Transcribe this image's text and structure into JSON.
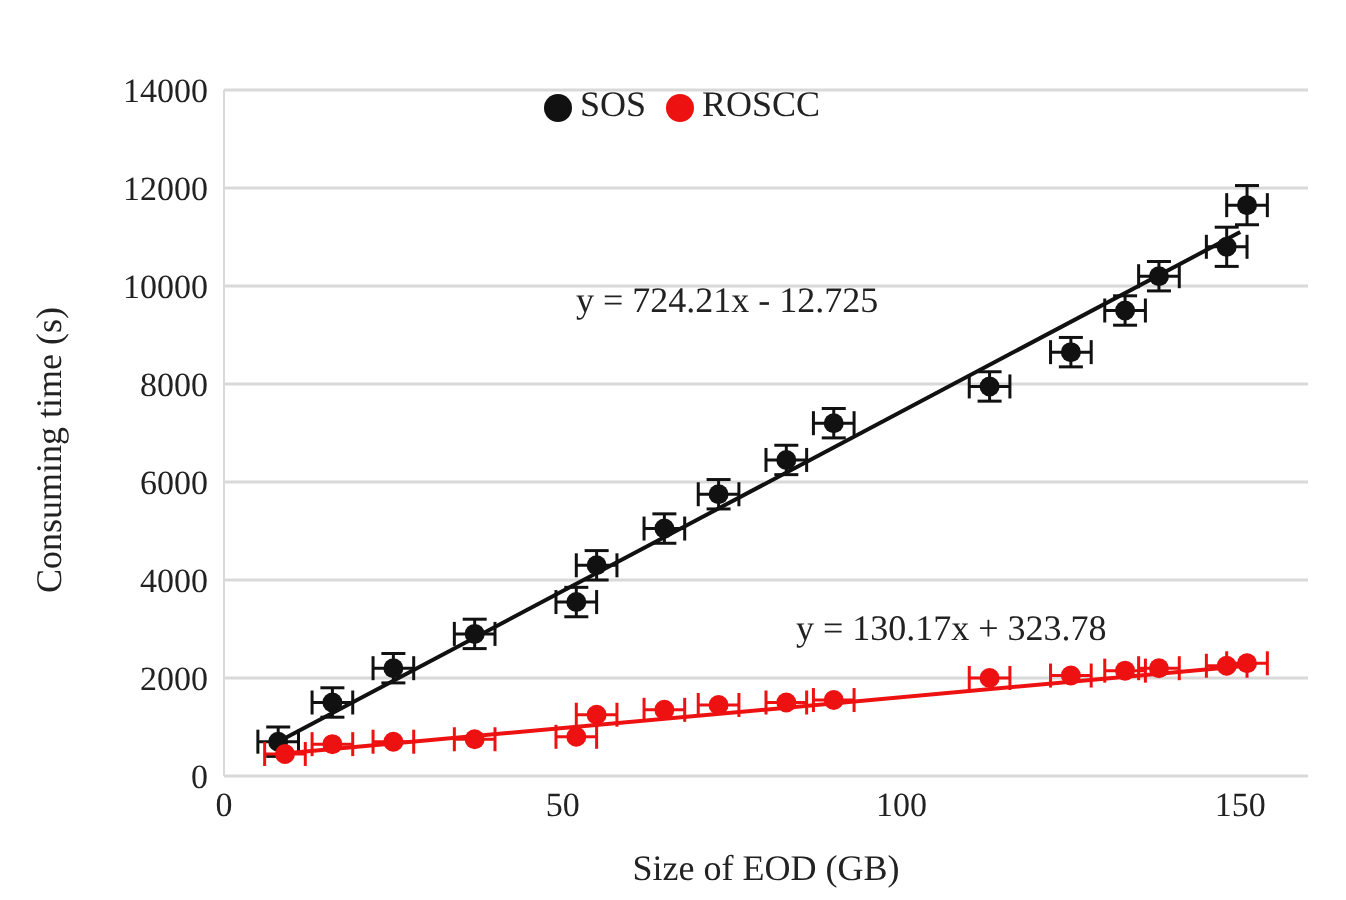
{
  "chart_data": {
    "type": "scatter",
    "xlabel": "Size of EOD  (GB)",
    "ylabel": "Consuming time (s)",
    "xlim": [
      0,
      160
    ],
    "xticks": [
      0,
      50,
      100,
      150
    ],
    "ylim": [
      0,
      14000
    ],
    "yticks": [
      0,
      2000,
      4000,
      6000,
      8000,
      10000,
      12000,
      14000
    ],
    "grid": "y",
    "legend": "top",
    "marker": "circle",
    "series": [
      {
        "name": "SOS",
        "color": "#111111",
        "x": [
          8,
          16,
          25,
          37,
          52,
          55,
          65,
          73,
          83,
          90,
          113,
          125,
          133,
          138,
          148,
          151
        ],
        "values": [
          700,
          1500,
          2200,
          2900,
          3550,
          4300,
          5050,
          5750,
          6450,
          7200,
          7950,
          8650,
          9500,
          10200,
          10800,
          11650
        ],
        "errors": [
          300,
          300,
          300,
          300,
          300,
          300,
          300,
          300,
          300,
          300,
          300,
          300,
          300,
          300,
          400,
          400
        ],
        "xerrors": [
          3,
          3,
          3,
          3,
          3,
          3,
          3,
          3,
          3,
          3,
          3,
          3,
          3,
          3,
          3,
          3
        ]
      },
      {
        "name": "ROSCC",
        "color": "#ee1111",
        "x": [
          9,
          16,
          25,
          37,
          52,
          55,
          65,
          73,
          83,
          90,
          113,
          125,
          133,
          138,
          148,
          151
        ],
        "values": [
          450,
          650,
          700,
          750,
          800,
          1250,
          1350,
          1450,
          1500,
          1550,
          2000,
          2050,
          2150,
          2200,
          2250,
          2300
        ],
        "xerrors": [
          3,
          3,
          3,
          3,
          3,
          3,
          3,
          3,
          3,
          3,
          3,
          3,
          3,
          3,
          3,
          3
        ]
      },
      {
        "type": "line",
        "color": "#111111",
        "x": [
          8,
          150
        ],
        "values": [
          700,
          11100
        ],
        "marker": "none"
      },
      {
        "type": "line",
        "color": "#ee1111",
        "x": [
          8,
          151
        ],
        "values": [
          450,
          2250
        ],
        "marker": "none"
      }
    ],
    "annotations": [
      "y = 724.21x - 12.725",
      "y = 130.17x + 323.78"
    ]
  }
}
